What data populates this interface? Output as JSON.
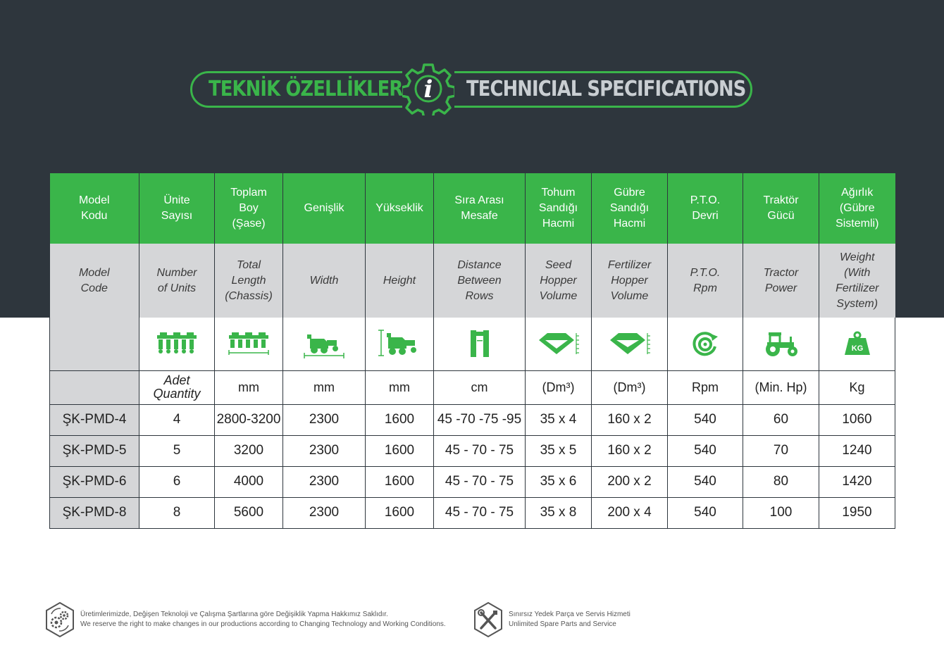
{
  "header": {
    "title_tr": "TEKNİK ÖZELLİKLER",
    "title_en": "TECHNICIAL SPECIFICATIONS",
    "info_glyph": "i",
    "colors": {
      "band": "#2e363d",
      "accent": "#3ab54a",
      "title_en": "#c9ced2"
    }
  },
  "table": {
    "headers_tr": [
      [
        "Model",
        "Kodu"
      ],
      [
        "Ünite",
        "Sayısı"
      ],
      [
        "Toplam",
        "Boy",
        "(Şase)"
      ],
      [
        "Genişlik"
      ],
      [
        "Yükseklik"
      ],
      [
        "Sıra Arası",
        "Mesafe"
      ],
      [
        "Tohum",
        "Sandığı",
        "Hacmi"
      ],
      [
        "Gübre",
        "Sandığı",
        "Hacmi"
      ],
      [
        "P.T.O.",
        "Devri"
      ],
      [
        "Traktör",
        "Gücü"
      ],
      [
        "Ağırlık",
        "(Gübre",
        "Sistemli)"
      ]
    ],
    "headers_en": [
      [
        "Model",
        "Code"
      ],
      [
        "Number",
        "of Units"
      ],
      [
        "Total",
        "Length",
        "(Chassis)"
      ],
      [
        "Width"
      ],
      [
        "Height"
      ],
      [
        "Distance",
        "Between",
        "Rows"
      ],
      [
        "Seed",
        "Hopper",
        "Volume"
      ],
      [
        "Fertilizer",
        "Hopper",
        "Volume"
      ],
      [
        "P.T.O.",
        "Rpm"
      ],
      [
        "Tractor",
        "Power"
      ],
      [
        "Weight",
        "(With",
        "Fertilizer",
        "System)"
      ]
    ],
    "icons": [
      "",
      "planter-units-icon",
      "planter-length-icon",
      "machine-width-icon",
      "machine-height-icon",
      "row-distance-icon",
      "seed-hopper-icon",
      "fertilizer-hopper-icon",
      "pto-rpm-icon",
      "tractor-icon",
      "weight-kg-icon"
    ],
    "kg_label": "KG",
    "units": {
      "quantity": [
        "Adet",
        "Quantity"
      ],
      "length": "mm",
      "width": "mm",
      "height": "mm",
      "distance": "cm",
      "seed": "(Dm³)",
      "fert": "(Dm³)",
      "pto": "Rpm",
      "power": "(Min. Hp)",
      "weight": "Kg"
    },
    "rows": [
      [
        "ŞK-PMD-4",
        "4",
        "2800-3200",
        "2300",
        "1600",
        "45 -70 -75 -95",
        "35 x 4",
        "160 x 2",
        "540",
        "60",
        "1060"
      ],
      [
        "ŞK-PMD-5",
        "5",
        "3200",
        "2300",
        "1600",
        "45 - 70 - 75",
        "35 x 5",
        "160 x 2",
        "540",
        "70",
        "1240"
      ],
      [
        "ŞK-PMD-6",
        "6",
        "4000",
        "2300",
        "1600",
        "45 - 70 - 75",
        "35 x 6",
        "200 x 2",
        "540",
        "80",
        "1420"
      ],
      [
        "ŞK-PMD-8",
        "8",
        "5600",
        "2300",
        "1600",
        "45 - 70 - 75",
        "35 x 8",
        "200 x 4",
        "540",
        "100",
        "1950"
      ]
    ]
  },
  "footer": {
    "left_tr": "Üretimlerimizde, Değişen Teknoloji ve Çalışma Şartlarına göre Değişiklik Yapma Hakkımız Saklıdır.",
    "left_en": "We reserve the right to make changes in our productions according to Changing Technology and Working Conditions.",
    "right_tr": "Sınırsız Yedek Parça ve Servis Hizmeti",
    "right_en": "Unlimited Spare Parts and Service"
  }
}
